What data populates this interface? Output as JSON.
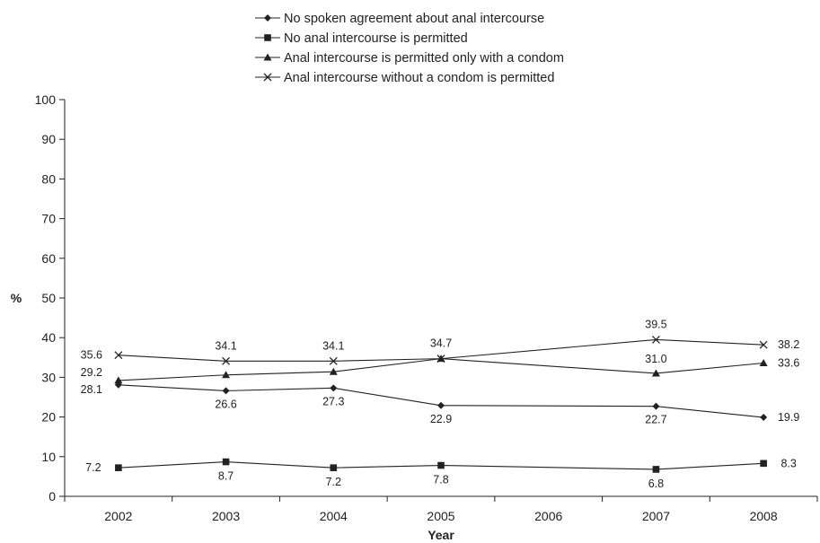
{
  "chart_data": {
    "type": "line",
    "xlabel": "Year",
    "ylabel": "%",
    "ylim": [
      0,
      100
    ],
    "yticks": [
      0,
      10,
      20,
      30,
      40,
      50,
      60,
      70,
      80,
      90,
      100
    ],
    "categories": [
      "2002",
      "2003",
      "2004",
      "2005",
      "2006",
      "2007",
      "2008"
    ],
    "legend_position": "top",
    "grid": false,
    "series": [
      {
        "name": "No spoken agreement about anal intercourse",
        "marker": "diamond",
        "values": [
          28.1,
          26.6,
          27.3,
          22.9,
          null,
          22.7,
          19.9
        ],
        "labels": [
          "28.1",
          "26.6",
          "27.3",
          "22.9",
          "",
          "22.7",
          "19.9"
        ]
      },
      {
        "name": "No anal intercourse is permitted",
        "marker": "square",
        "values": [
          7.2,
          8.7,
          7.2,
          7.8,
          null,
          6.8,
          8.3
        ],
        "labels": [
          "7.2",
          "8.7",
          "7.2",
          "7.8",
          "",
          "6.8",
          "8.3"
        ]
      },
      {
        "name": "Anal intercourse is permitted only with a condom",
        "marker": "triangle",
        "values": [
          29.2,
          30.6,
          31.4,
          34.7,
          null,
          31.0,
          33.6
        ],
        "labels": [
          "29.2",
          "",
          "",
          "",
          "",
          "31.0",
          "33.6"
        ]
      },
      {
        "name": "Anal intercourse without a condom is permitted",
        "marker": "cross",
        "values": [
          35.6,
          34.1,
          34.1,
          34.7,
          null,
          39.5,
          38.2
        ],
        "labels": [
          "35.6",
          "34.1",
          "34.1",
          "34.7",
          "",
          "39.5",
          "38.2"
        ]
      }
    ]
  }
}
